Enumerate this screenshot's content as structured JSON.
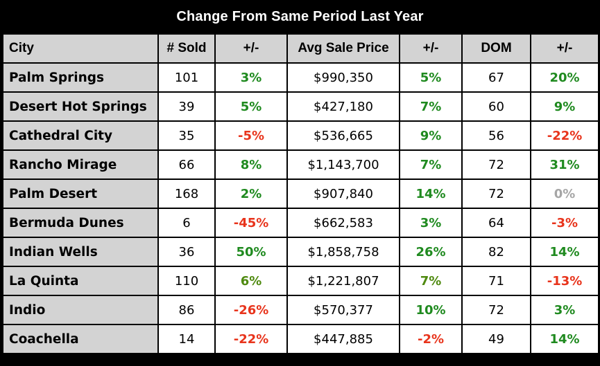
{
  "title": "Change From Same Period Last Year",
  "headers": [
    "City",
    "# Sold",
    "+/-",
    "Avg Sale Price",
    "+/-",
    "DOM",
    "+/-"
  ],
  "rows": [
    {
      "city": "Palm Springs",
      "sold": "101",
      "sold_chg": "3%",
      "sold_chg_color": "#1f8a1f",
      "price": "$990,350",
      "price_chg": "5%",
      "price_chg_color": "#1f8a1f",
      "dom": "67",
      "dom_chg": "20%",
      "dom_chg_color": "#1f8a1f"
    },
    {
      "city": "Desert Hot Springs",
      "sold": "39",
      "sold_chg": "5%",
      "sold_chg_color": "#1f8a1f",
      "price": "$427,180",
      "price_chg": "7%",
      "price_chg_color": "#1f8a1f",
      "dom": "60",
      "dom_chg": "9%",
      "dom_chg_color": "#1f8a1f"
    },
    {
      "city": "Cathedral City",
      "sold": "35",
      "sold_chg": "-5%",
      "sold_chg_color": "#e8341c",
      "price": "$536,665",
      "price_chg": "9%",
      "price_chg_color": "#1f8a1f",
      "dom": "56",
      "dom_chg": "-22%",
      "dom_chg_color": "#e8341c"
    },
    {
      "city": "Rancho Mirage",
      "sold": "66",
      "sold_chg": "8%",
      "sold_chg_color": "#1f8a1f",
      "price": "$1,143,700",
      "price_chg": "7%",
      "price_chg_color": "#1f8a1f",
      "dom": "72",
      "dom_chg": "31%",
      "dom_chg_color": "#1f8a1f"
    },
    {
      "city": "Palm Desert",
      "sold": "168",
      "sold_chg": "2%",
      "sold_chg_color": "#1f8a1f",
      "price": "$907,840",
      "price_chg": "14%",
      "price_chg_color": "#1f8a1f",
      "dom": "72",
      "dom_chg": "0%",
      "dom_chg_color": "#a6a6a6"
    },
    {
      "city": "Bermuda Dunes",
      "sold": "6",
      "sold_chg": "-45%",
      "sold_chg_color": "#e8341c",
      "price": "$662,583",
      "price_chg": "3%",
      "price_chg_color": "#1f8a1f",
      "dom": "64",
      "dom_chg": "-3%",
      "dom_chg_color": "#e8341c"
    },
    {
      "city": "Indian Wells",
      "sold": "36",
      "sold_chg": "50%",
      "sold_chg_color": "#1f8a1f",
      "price": "$1,858,758",
      "price_chg": "26%",
      "price_chg_color": "#1f8a1f",
      "dom": "82",
      "dom_chg": "14%",
      "dom_chg_color": "#1f8a1f"
    },
    {
      "city": "La Quinta",
      "sold": "110",
      "sold_chg": "6%",
      "sold_chg_color": "#4f8a10",
      "price": "$1,221,807",
      "price_chg": "7%",
      "price_chg_color": "#4f8a10",
      "dom": "71",
      "dom_chg": "-13%",
      "dom_chg_color": "#e8341c"
    },
    {
      "city": "Indio",
      "sold": "86",
      "sold_chg": "-26%",
      "sold_chg_color": "#e8341c",
      "price": "$570,377",
      "price_chg": "10%",
      "price_chg_color": "#1f8a1f",
      "dom": "72",
      "dom_chg": "3%",
      "dom_chg_color": "#1f8a1f"
    },
    {
      "city": "Coachella",
      "sold": "14",
      "sold_chg": "-22%",
      "sold_chg_color": "#e8341c",
      "price": "$447,885",
      "price_chg": "-2%",
      "price_chg_color": "#e8341c",
      "dom": "49",
      "dom_chg": "14%",
      "dom_chg_color": "#1f8a1f"
    }
  ]
}
